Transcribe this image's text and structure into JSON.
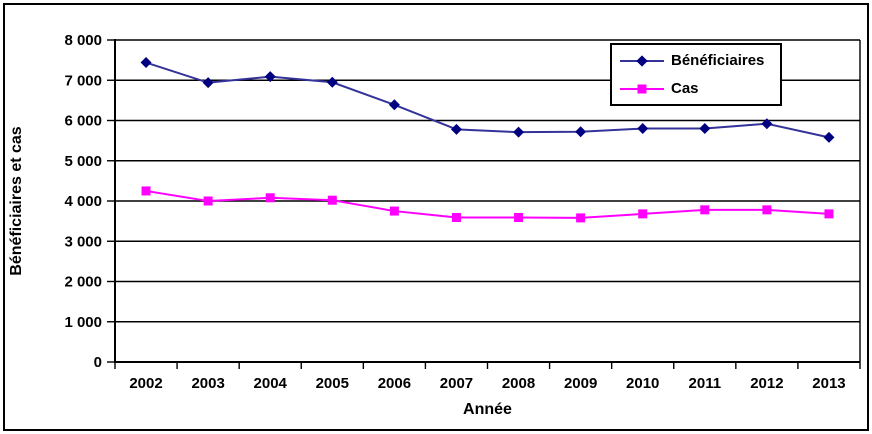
{
  "chart_data": {
    "type": "line",
    "title": "",
    "xlabel": "Année",
    "ylabel": "Bénéficiaires et cas",
    "categories": [
      "2002",
      "2003",
      "2004",
      "2005",
      "2006",
      "2007",
      "2008",
      "2009",
      "2010",
      "2011",
      "2012",
      "2013"
    ],
    "series": [
      {
        "name": "Bénéficiaires",
        "marker": "diamond",
        "color": "#000080",
        "line_color": "#333399",
        "values": [
          7440,
          6940,
          7090,
          6950,
          6390,
          5780,
          5710,
          5720,
          5800,
          5800,
          5920,
          5580
        ]
      },
      {
        "name": "Cas",
        "marker": "square",
        "color": "#FF00FF",
        "line_color": "#FF00FF",
        "values": [
          4250,
          4000,
          4080,
          4020,
          3750,
          3590,
          3590,
          3580,
          3680,
          3780,
          3780,
          3680
        ]
      }
    ],
    "ylim": [
      0,
      8000
    ],
    "y_tick_values": [
      0,
      1000,
      2000,
      3000,
      4000,
      5000,
      6000,
      7000,
      8000
    ],
    "y_tick_labels": [
      "0",
      "1 000",
      "2 000",
      "3 000",
      "4 000",
      "5 000",
      "6 000",
      "7 000",
      "8 000"
    ],
    "grid": "horizontal",
    "legend_position": "top-right",
    "colors": {
      "axis": "#000000",
      "gridline": "#000000",
      "background": "#FFFFFF",
      "frame_border": "#000000"
    }
  }
}
